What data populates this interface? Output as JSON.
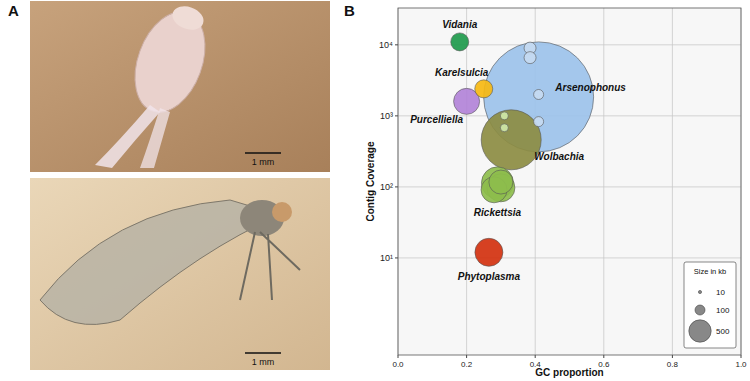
{
  "panel_a": {
    "label": "A",
    "scale_bars": [
      "1 mm",
      "1 mm"
    ]
  },
  "chart_data": {
    "type": "bubble",
    "panel_label": "B",
    "x_label": "GC proportion",
    "y_label": "Contig Coverage",
    "log": "y",
    "grid": true,
    "xlim": [
      0,
      1
    ],
    "xticks": [
      {
        "value": 0,
        "label": "0.0"
      },
      0.2,
      0.4,
      0.6,
      0.8,
      {
        "value": 1,
        "label": "1.0"
      }
    ],
    "ylim": [
      0.43,
      33000
    ],
    "yticks": [
      {
        "value": 10,
        "label": "10¹"
      },
      {
        "value": 100,
        "label": "10²"
      },
      {
        "value": 1000,
        "label": "10³"
      },
      {
        "value": 10000,
        "label": "10⁴"
      }
    ],
    "series": [
      {
        "name": "Vidania",
        "colors": [
          "#1e9a4c"
        ],
        "x": [
          0.18
        ],
        "values": [
          11000
        ],
        "sizes": [
          324
        ]
      },
      {
        "name": "Karelsulcia",
        "colors": [
          "#f6b912"
        ],
        "x": [
          0.25
        ],
        "values": [
          2400
        ],
        "sizes": [
          324
        ]
      },
      {
        "name": "Purcelliella",
        "colors": [
          "#b283d8"
        ],
        "x": [
          0.2
        ],
        "values": [
          1600
        ],
        "sizes": [
          676
        ]
      },
      {
        "name": "Arsenophonus",
        "colors": [
          "#9cc2ea",
          "#c6daf1",
          "#c6daf1",
          "#c6daf1",
          "#c6daf1"
        ],
        "x": [
          0.41,
          0.41,
          0.41,
          0.385,
          0.385
        ],
        "values": [
          1850,
          2000,
          830,
          9000,
          6600
        ],
        "sizes": [
          12100,
          100,
          100,
          144,
          144
        ]
      },
      {
        "name": "Wolbachia",
        "colors": [
          "#8c8c42",
          "#cfe8a8",
          "#cfe8a8"
        ],
        "x": [
          0.33,
          0.31,
          0.31
        ],
        "values": [
          460,
          1000,
          680
        ],
        "sizes": [
          3600,
          64,
          64
        ]
      },
      {
        "name": "Rickettsia",
        "colors": [
          "#8dbd4c",
          "#8dbd4c",
          "#8dbd4c",
          "#8dbd4c"
        ],
        "x": [
          0.29,
          0.3,
          0.28,
          0.3
        ],
        "values": [
          114,
          97,
          91,
          117
        ],
        "sizes": [
          1024,
          784,
          676,
          576
        ]
      },
      {
        "name": "Phytoplasma",
        "colors": [
          "#d2310f"
        ],
        "x": [
          0.265
        ],
        "values": [
          12
        ],
        "sizes": [
          784
        ]
      }
    ],
    "size_legend": {
      "title": "Size in kb",
      "values": [
        10,
        100,
        500
      ]
    }
  }
}
